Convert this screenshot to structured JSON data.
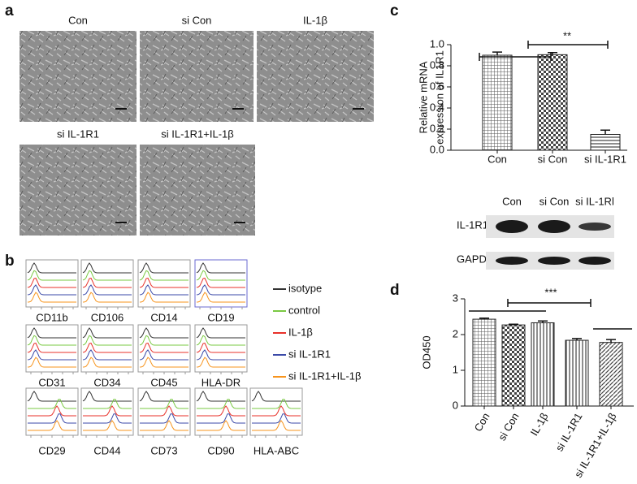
{
  "panels": {
    "a": {
      "label": "a",
      "images": [
        "Con",
        "si Con",
        "IL-1β",
        "si IL-1R1",
        "si IL-1R1+IL-1β"
      ]
    },
    "b": {
      "label": "b",
      "markers": [
        "CD11b",
        "CD106",
        "CD14",
        "CD19",
        "CD31",
        "CD34",
        "CD45",
        "HLA-DR",
        "CD29",
        "CD44",
        "CD73",
        "CD90",
        "HLA-ABC"
      ],
      "legend": [
        {
          "name": "isotype",
          "color": "#333333"
        },
        {
          "name": "control",
          "color": "#7ac943"
        },
        {
          "name": "IL-1β",
          "color": "#e8312a"
        },
        {
          "name": "si IL-1R1",
          "color": "#3b4aa8"
        },
        {
          "name": "si IL-1R1+IL-1β",
          "color": "#f7941d"
        }
      ]
    },
    "c": {
      "label": "c",
      "blot": {
        "lanes": [
          "Con",
          "si Con",
          "si IL-1Rl"
        ],
        "rows": [
          "IL-1R1",
          "GAPDH"
        ]
      }
    },
    "d": {
      "label": "d"
    }
  },
  "chart_data": [
    {
      "type": "bar",
      "ylabel": [
        "Relative mRNA",
        "expression of IL1R1"
      ],
      "categories": [
        "Con",
        "si Con",
        "si IL-1R1"
      ],
      "values": [
        0.9,
        0.905,
        0.15
      ],
      "errors": [
        0.03,
        0.02,
        0.04
      ],
      "ylim": [
        0,
        1
      ],
      "yticks": [
        {
          "value": 0,
          "label": "0.0"
        },
        0.2,
        0.4,
        0.6,
        0.8,
        {
          "value": 1,
          "label": "1.0"
        }
      ],
      "annotations": [
        "**"
      ]
    },
    {
      "type": "bar",
      "ylabel": [
        "OD450"
      ],
      "categories": [
        "Con",
        "si Con",
        "IL-1β",
        "si IL-1R1",
        "si IL-1R1+IL-1β"
      ],
      "values": [
        2.43,
        2.27,
        2.33,
        1.84,
        1.78
      ],
      "errors": [
        0.03,
        0.02,
        0.05,
        0.05,
        0.08
      ],
      "ylim": [
        0,
        3
      ],
      "yticks": [
        0,
        1,
        2,
        3
      ],
      "annotations": [
        "***"
      ]
    }
  ]
}
